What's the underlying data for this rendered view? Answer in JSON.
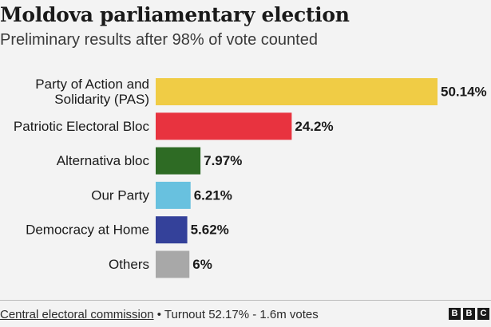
{
  "chart_data": {
    "type": "bar",
    "orientation": "horizontal",
    "title": "Moldova parliamentary election",
    "subtitle": "Preliminary results after 98% of vote counted",
    "categories": [
      [
        "Party of Action and",
        "Solidarity (PAS)"
      ],
      [
        "Patriotic Electoral Bloc"
      ],
      [
        "Alternativa bloc"
      ],
      [
        "Our Party"
      ],
      [
        "Democracy at Home"
      ],
      [
        "Others"
      ]
    ],
    "values": [
      50.14,
      24.2,
      7.97,
      6.21,
      5.62,
      6
    ],
    "value_labels": [
      "50.14%",
      "24.2%",
      "7.97%",
      "6.21%",
      "5.62%",
      "6%"
    ],
    "colors": [
      "#f0cc45",
      "#e8333f",
      "#2e6b24",
      "#68c1df",
      "#34419a",
      "#a8a8a8"
    ],
    "xlim": [
      0,
      50.14
    ]
  },
  "footer": {
    "source": "Central electoral commission",
    "note": " • Turnout 52.17% - 1.6m votes"
  },
  "logo": {
    "letters": [
      "B",
      "B",
      "C"
    ]
  }
}
